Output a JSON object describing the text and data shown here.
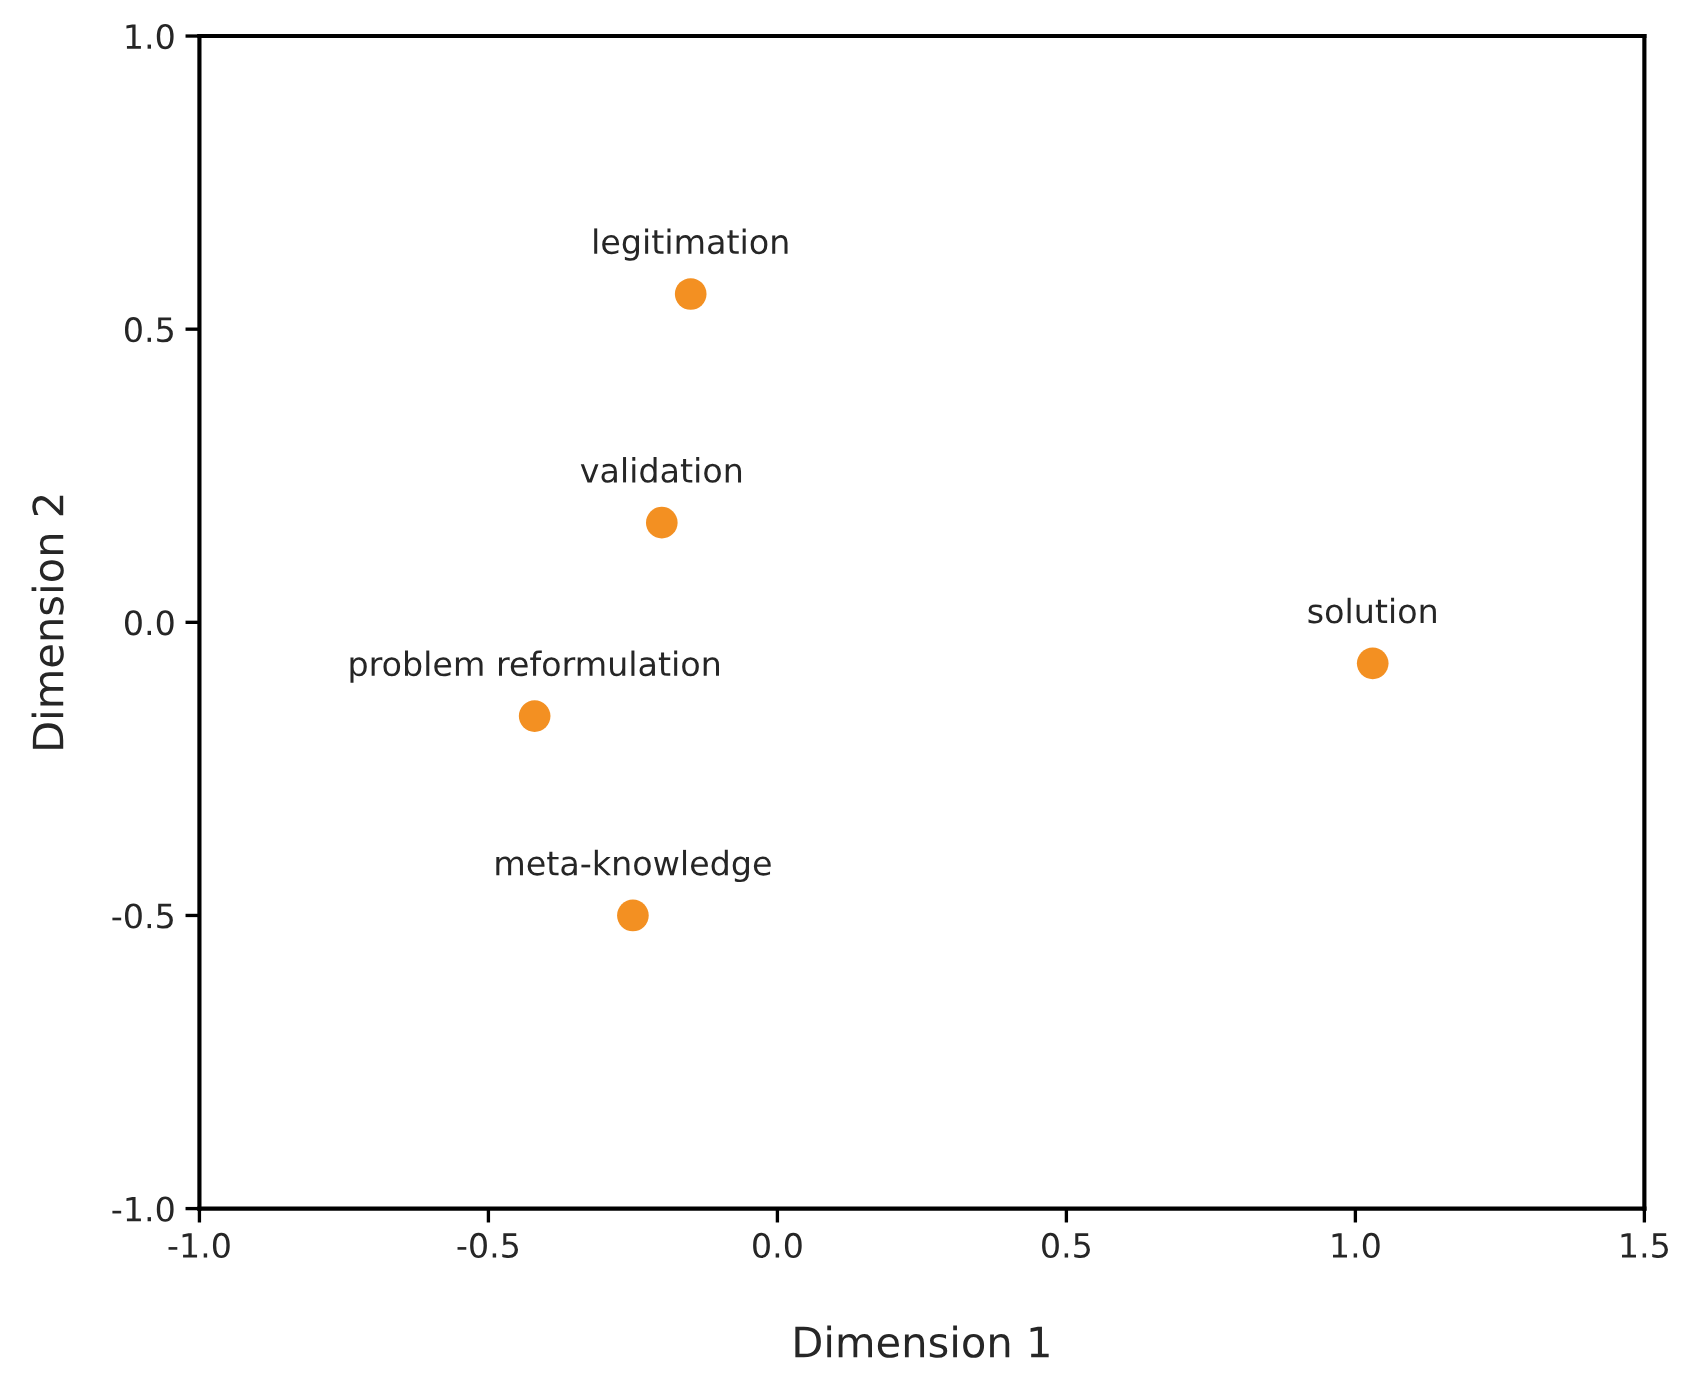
{
  "chart_data": {
    "type": "scatter",
    "xlabel": "Dimension 1",
    "ylabel": "Dimension 2",
    "x": [
      -0.15,
      -0.2,
      -0.42,
      -0.25,
      1.03
    ],
    "series": [
      {
        "color": "#f39022",
        "values": [
          0.56,
          0.17,
          -0.16,
          -0.5,
          -0.07
        ]
      }
    ],
    "annotations": [
      {
        "text": "legitimation",
        "x": -0.15,
        "y": 0.56
      },
      {
        "text": "validation",
        "x": -0.2,
        "y": 0.17
      },
      {
        "text": "problem reformulation",
        "x": -0.42,
        "y": -0.16
      },
      {
        "text": "meta-knowledge",
        "x": -0.25,
        "y": -0.5
      },
      {
        "text": "solution",
        "x": 1.03,
        "y": -0.07
      }
    ],
    "xlim": [
      -1.0,
      1.5
    ],
    "ylim": [
      -1.0,
      1.0
    ],
    "xticks": [
      {
        "value": -1.0,
        "label": "-1.0"
      },
      {
        "value": -0.5,
        "label": "-0.5"
      },
      {
        "value": 0.0,
        "label": "0.0"
      },
      {
        "value": 0.5,
        "label": "0.5"
      },
      {
        "value": 1.0,
        "label": "1.0"
      },
      {
        "value": 1.5,
        "label": "1.5"
      }
    ],
    "yticks": [
      {
        "value": -1.0,
        "label": "-1.0"
      },
      {
        "value": -0.5,
        "label": "-0.5"
      },
      {
        "value": 0.0,
        "label": "0.0"
      },
      {
        "value": 0.5,
        "label": "0.5"
      },
      {
        "value": 1.0,
        "label": "1.0"
      }
    ],
    "marker": "circle",
    "grid": false,
    "legend": false
  }
}
